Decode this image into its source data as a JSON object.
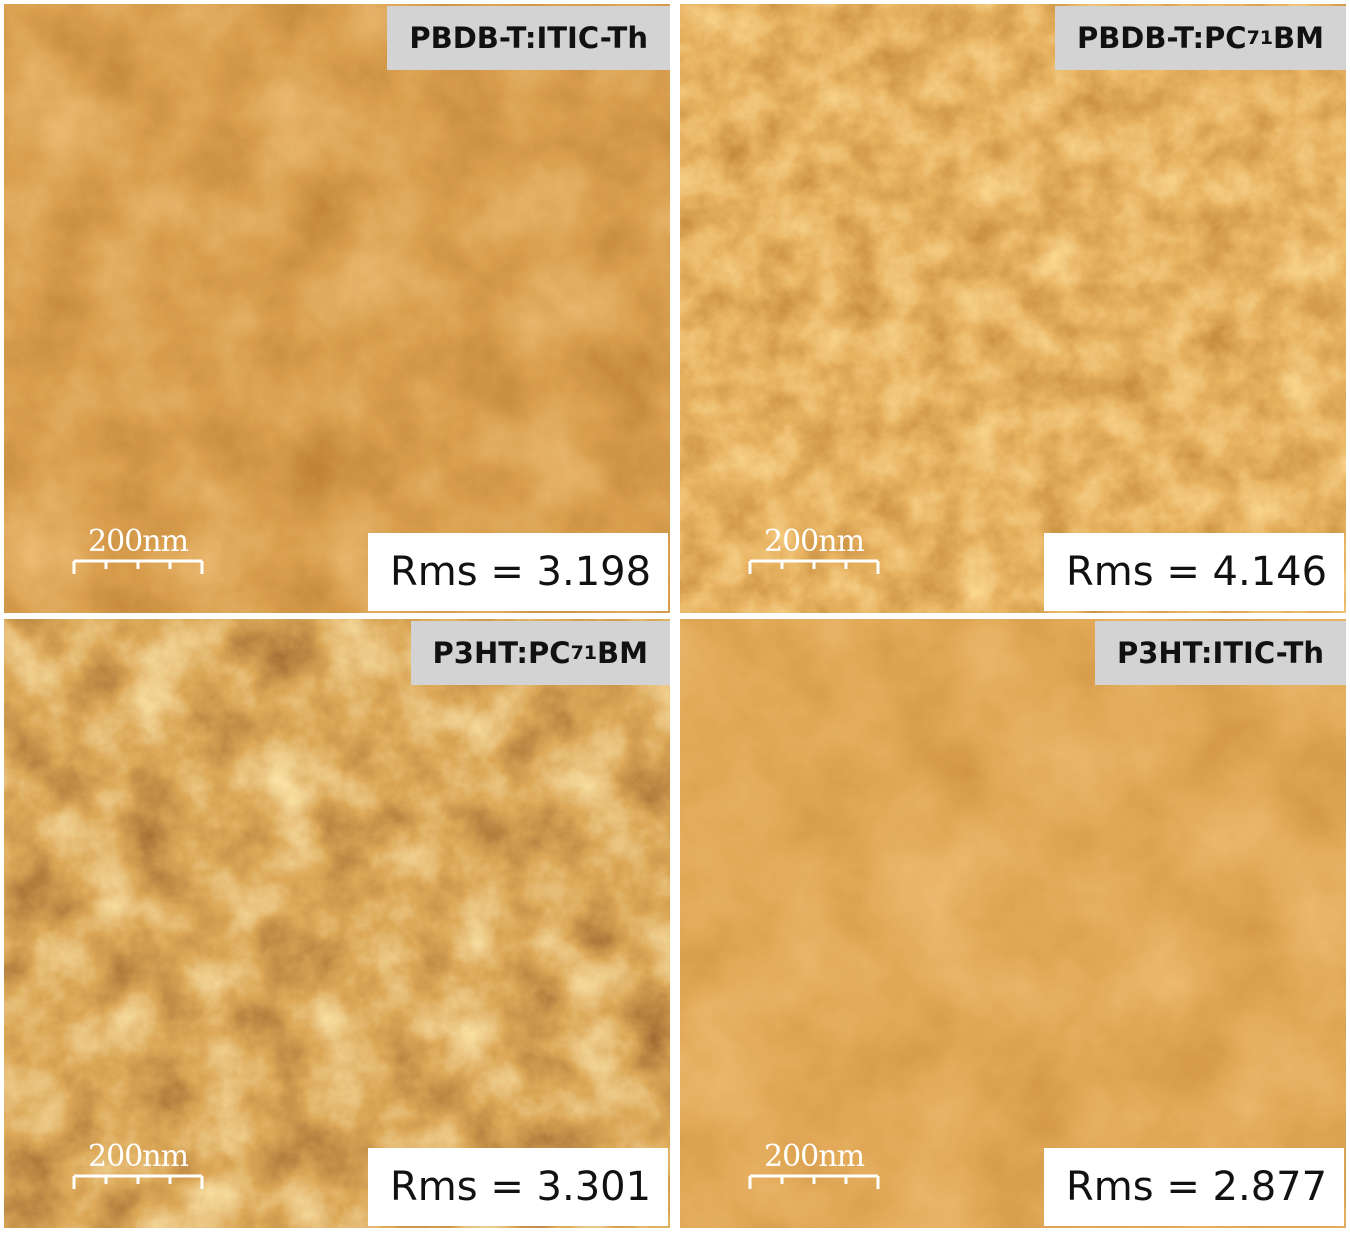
{
  "panels": [
    {
      "label": {
        "text": "PBDB-T:ITIC-Th"
      },
      "scale_bar": "200nm",
      "rms": "Rms = 3.198"
    },
    {
      "label": {
        "text": "PBDB-T:PC",
        "subscript": "71",
        "suffix": "BM"
      },
      "scale_bar": "200nm",
      "rms": "Rms = 4.146"
    },
    {
      "label": {
        "text": "P3HT:PC",
        "subscript": "71",
        "suffix": "BM"
      },
      "scale_bar": "200nm",
      "rms": "Rms = 3.301"
    },
    {
      "label": {
        "text": "P3HT:ITIC-Th"
      },
      "scale_bar": "200nm",
      "rms": "Rms = 2.877"
    }
  ]
}
